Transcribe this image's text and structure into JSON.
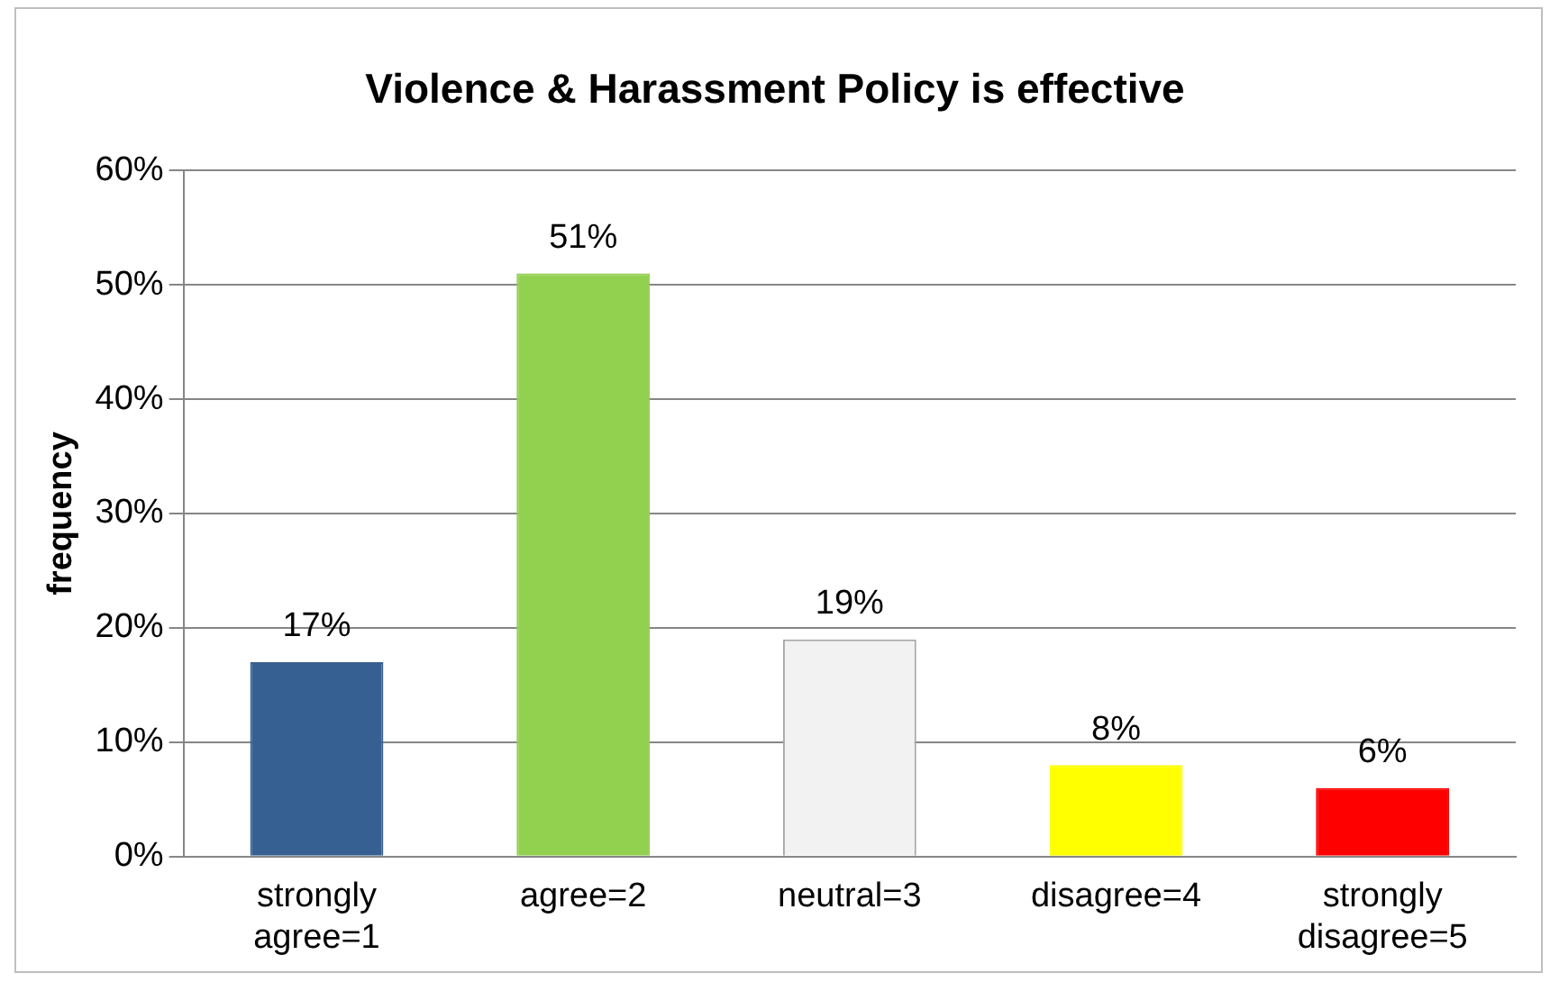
{
  "chart_data": {
    "type": "bar",
    "title": "Violence & Harassment Policy is effective",
    "ylabel": "frequency",
    "categories": [
      "strongly agree=1",
      "agree=2",
      "neutral=3",
      "disagree=4",
      "strongly disagree=5"
    ],
    "values": [
      17,
      51,
      19,
      8,
      6
    ],
    "colors": [
      "#376092",
      "#92d050",
      "#f2f2f2",
      "#ffff00",
      "#ff0000"
    ],
    "ylim": [
      0,
      60
    ],
    "yticks": [
      {
        "value": 0,
        "label": "0%"
      },
      {
        "value": 10,
        "label": "10%"
      },
      {
        "value": 20,
        "label": "20%"
      },
      {
        "value": 30,
        "label": "30%"
      },
      {
        "value": 40,
        "label": "40%"
      },
      {
        "value": 50,
        "label": "50%"
      },
      {
        "value": 60,
        "label": "60%"
      }
    ],
    "value_labels": [
      "17%",
      "51%",
      "19%",
      "8%",
      "6%"
    ],
    "grid": "y",
    "legend": false
  }
}
